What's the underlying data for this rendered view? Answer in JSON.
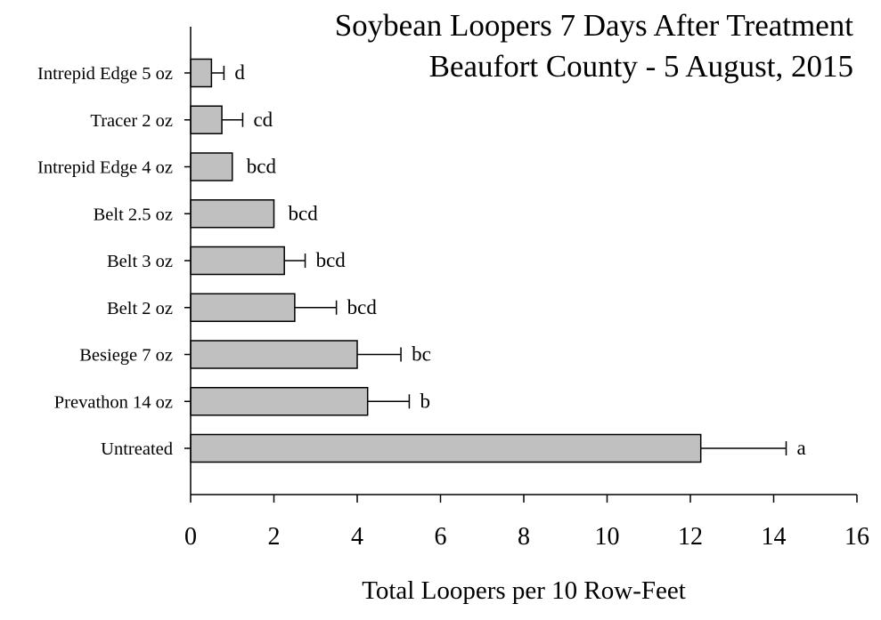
{
  "chart_data": {
    "type": "bar",
    "orientation": "horizontal",
    "title": [
      "Soybean Loopers 7 Days After Treatment",
      "Beaufort County - 5 August, 2015"
    ],
    "xlabel": "Total Loopers per 10 Row-Feet",
    "ylabel": "",
    "xlim": [
      0,
      16
    ],
    "xticks": [
      0,
      2,
      4,
      6,
      8,
      10,
      12,
      14,
      16
    ],
    "grid": false,
    "bar_color": "#c0c0c0",
    "categories": [
      "Intrepid Edge 5 oz",
      "Tracer 2 oz",
      "Intrepid Edge 4 oz",
      "Belt 2.5 oz",
      "Belt 3 oz",
      "Belt 2 oz",
      "Besiege 7 oz",
      "Prevathon 14 oz",
      "Untreated"
    ],
    "values": [
      0.5,
      0.75,
      1.0,
      2.0,
      2.25,
      2.5,
      4.0,
      4.25,
      12.25
    ],
    "error": [
      0.3,
      0.5,
      0.0,
      0.0,
      0.5,
      1.0,
      1.05,
      1.0,
      2.05
    ],
    "significance_letters": [
      "d",
      "cd",
      "bcd",
      "bcd",
      "bcd",
      "bcd",
      "bc",
      "b",
      "a"
    ]
  }
}
